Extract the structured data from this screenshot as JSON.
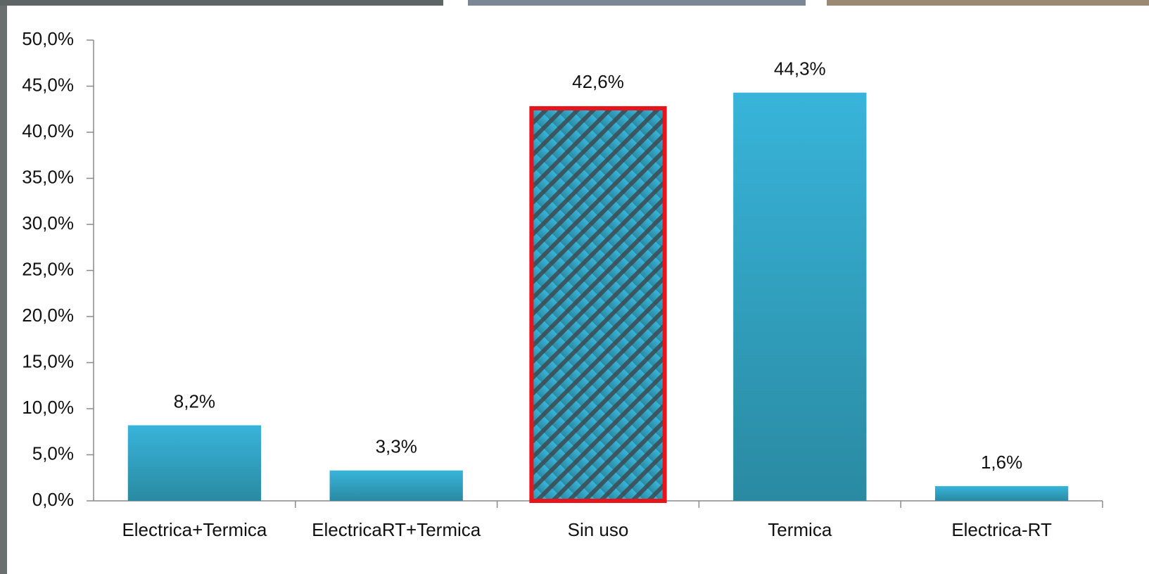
{
  "chart_data": {
    "type": "bar",
    "categories": [
      "Electrica+Termica",
      "ElectricaRT+Termica",
      "Sin uso",
      "Termica",
      "Electrica-RT"
    ],
    "values": [
      8.2,
      3.3,
      42.6,
      44.3,
      1.6
    ],
    "value_labels": [
      "8,2%",
      "3,3%",
      "42,6%",
      "44,3%",
      "1,6%"
    ],
    "color": "#33a9cc",
    "highlight": {
      "category": "Sin uso",
      "border_color": "#e8141b"
    },
    "ylim": [
      0,
      50
    ],
    "yticks": [
      {
        "value": 0,
        "label": "0,0%"
      },
      {
        "value": 5,
        "label": "5,0%"
      },
      {
        "value": 10,
        "label": "10,0%"
      },
      {
        "value": 15,
        "label": "15,0%"
      },
      {
        "value": 20,
        "label": "20,0%"
      },
      {
        "value": 25,
        "label": "25,0%"
      },
      {
        "value": 30,
        "label": "30,0%"
      },
      {
        "value": 35,
        "label": "35,0%"
      },
      {
        "value": 40,
        "label": "40,0%"
      },
      {
        "value": 45,
        "label": "45,0%"
      },
      {
        "value": 50,
        "label": "50,0%"
      }
    ],
    "grid": false
  }
}
